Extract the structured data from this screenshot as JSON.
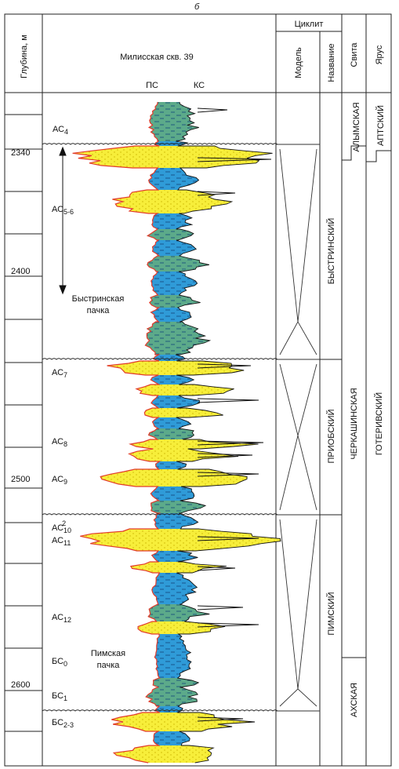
{
  "figure_letter": "б",
  "columns": {
    "depth": "Глубина, м",
    "well": "Милисская скв. 39",
    "ps": "ПС",
    "ks": "КС",
    "cyclite": "Циклит",
    "model": "Модель",
    "name": "Название",
    "suite": "Свита",
    "stage": "Ярус"
  },
  "depth_ticks": [
    "2340",
    "2400",
    "2500",
    "2600"
  ],
  "layers": [
    {
      "base": "АС",
      "sub": "4"
    },
    {
      "base": "АС",
      "sub": "5-6"
    },
    {
      "base": "АС",
      "sub": "7"
    },
    {
      "base": "АС",
      "sub": "8"
    },
    {
      "base": "АС",
      "sub": "9"
    },
    {
      "base": "АС",
      "sub": "10",
      "sup": "2"
    },
    {
      "base": "АС",
      "sub": "11"
    },
    {
      "base": "АС",
      "sub": "12"
    },
    {
      "base": "БС",
      "sub": "0"
    },
    {
      "base": "БС",
      "sub": "1"
    },
    {
      "base": "БС",
      "sub": "2-3"
    }
  ],
  "member_bystrinsk": [
    "Быстринская",
    "пачка"
  ],
  "member_pimsk": [
    "Пимская",
    "пачка"
  ],
  "cyclites": [
    "БЫСТРИНСКИЙ",
    "ПРИОБСКИЙ",
    "ПИМСКИЙ"
  ],
  "suites": [
    "АЛЫМСКАЯ",
    "ЧЕРКАШИНСКАЯ",
    "АХСКАЯ"
  ],
  "stages": [
    "АПТСКИЙ",
    "ГОТЕРИВСКИЙ"
  ],
  "colors": {
    "sand": "#f7ee3a",
    "sand_dots": "#c9b200",
    "clay": "#2f9bd8",
    "silt": "#5caa8a",
    "ps_curve": "#e23b2a",
    "ks_curve": "#111111"
  }
}
